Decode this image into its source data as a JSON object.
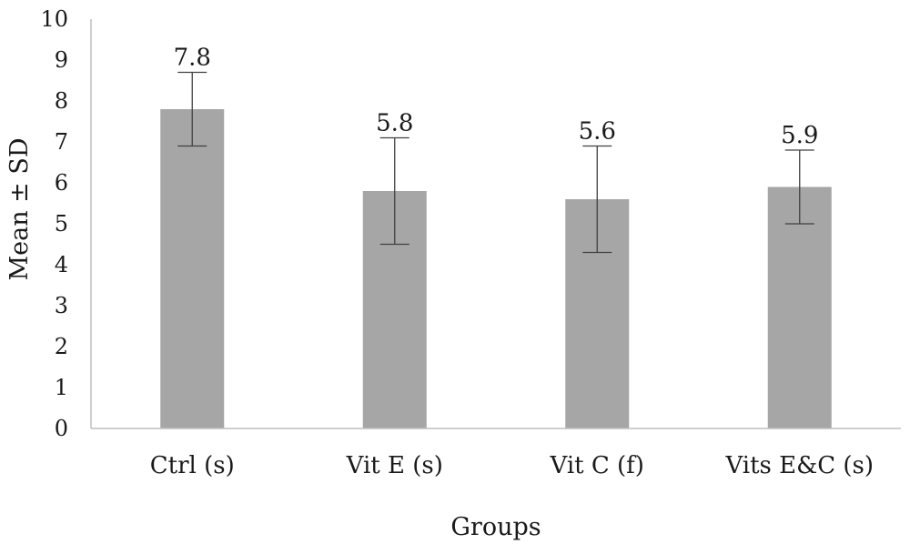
{
  "chart_data": {
    "type": "bar",
    "categories": [
      "Ctrl (s)",
      "Vit E (s)",
      "Vit C (f)",
      "Vits E&C (s)"
    ],
    "values": [
      7.8,
      5.8,
      5.6,
      5.9
    ],
    "error": [
      0.9,
      1.3,
      1.3,
      0.9
    ],
    "data_labels": [
      "7.8",
      "5.8",
      "5.6",
      "5.9"
    ],
    "xlabel": "Groups",
    "ylabel": "Mean ± SD",
    "ylim": [
      0,
      10
    ],
    "yticks": [
      0,
      1,
      2,
      3,
      4,
      5,
      6,
      7,
      8,
      9,
      10
    ],
    "grid": false,
    "bar_color": "#a6a6a6",
    "axis_color": "#bfbfbf",
    "errorbar_color": "#404040"
  }
}
